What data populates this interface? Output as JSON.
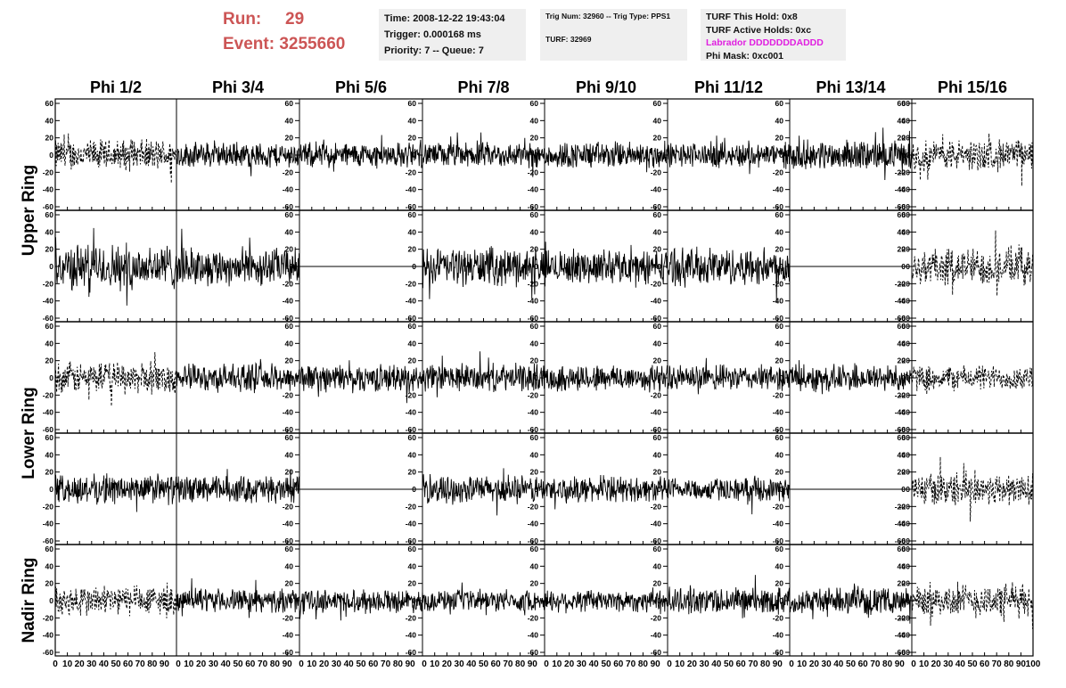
{
  "header": {
    "run_label": "Run:",
    "run_value": "29",
    "event_label": "Event:",
    "event_value": "3255660",
    "time": "Time: 2008-12-22 19:43:04",
    "trigger": "Trigger: 0.000168 ms",
    "priority": "Priority: 7 -- Queue: 7",
    "trig_num": "Trig Num: 32960 -- Trig Type: PPS1",
    "turf": "TURF: 32969",
    "turf_this_hold": "TURF This Hold: 0x8",
    "turf_active_holds": "TURF Active Holds: 0xc",
    "labrador": "Labrador DDDDDDDADDD",
    "phi_mask": "Phi Mask: 0xc001"
  },
  "colors": {
    "header_red": "#cc5555",
    "labrador_magenta": "#e020e0",
    "box_gray": "#efefef",
    "trace": "#000000"
  },
  "chart_data": {
    "type": "line",
    "columns": [
      "Phi 1/2",
      "Phi 3/4",
      "Phi 5/6",
      "Phi 7/8",
      "Phi 9/10",
      "Phi 11/12",
      "Phi 13/14",
      "Phi 15/16"
    ],
    "row_groups": [
      "Upper Ring",
      "Lower Ring",
      "Nadir Ring"
    ],
    "xlim": [
      0,
      100
    ],
    "ylim": [
      -60,
      60
    ],
    "x_ticks": [
      0,
      10,
      20,
      30,
      40,
      50,
      60,
      70,
      80,
      90,
      100
    ],
    "y_ticks": [
      -60,
      -40,
      -20,
      0,
      20,
      40,
      60
    ],
    "y_tick_labels": [
      "-60",
      "-40",
      "-20",
      "0",
      "20",
      "40",
      "60"
    ],
    "x_tick_labels": [
      "0",
      "10",
      "20",
      "30",
      "40",
      "50",
      "60",
      "70",
      "80",
      "90",
      "100"
    ],
    "panel_rows": [
      [
        "dashed",
        "solid",
        "solid",
        "solid",
        "solid",
        "solid",
        "solid",
        "dashed"
      ],
      [
        "solid",
        "solid",
        "flat",
        "solid",
        "solid",
        "solid",
        "flat",
        "dashed"
      ],
      [
        "dashed",
        "solid",
        "solid",
        "solid",
        "solid",
        "solid",
        "solid",
        "dashed"
      ],
      [
        "solid",
        "solid",
        "flat",
        "solid",
        "solid",
        "solid",
        "flat",
        "dashed"
      ],
      [
        "dashed",
        "solid",
        "solid",
        "solid",
        "solid",
        "solid",
        "solid",
        "dashed"
      ]
    ],
    "trace_amplitude": [
      [
        15,
        12,
        12,
        12,
        13,
        12,
        14,
        15
      ],
      [
        22,
        18,
        0,
        18,
        16,
        18,
        0,
        18
      ],
      [
        15,
        13,
        13,
        13,
        13,
        12,
        13,
        12
      ],
      [
        14,
        13,
        0,
        13,
        12,
        11,
        0,
        16
      ],
      [
        15,
        11,
        11,
        10,
        11,
        13,
        12,
        16
      ]
    ],
    "samples_per_trace": 260,
    "grid": false,
    "legend": "none"
  }
}
